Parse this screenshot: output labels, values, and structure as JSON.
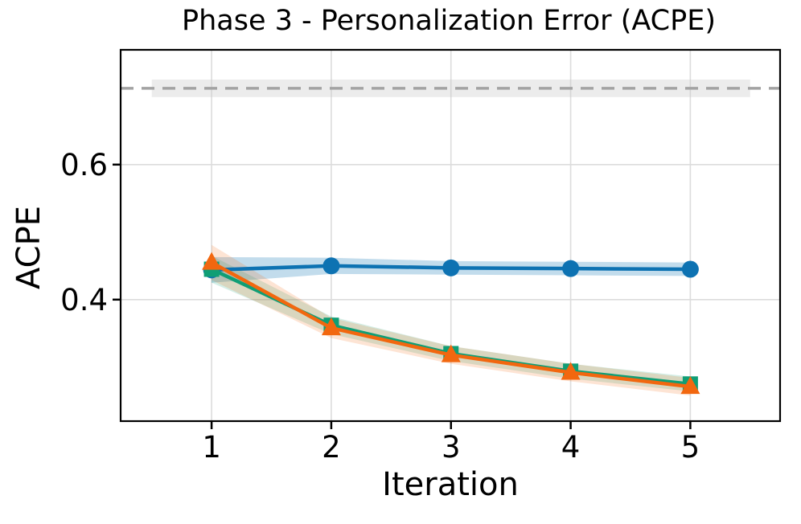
{
  "chart_data": {
    "type": "line",
    "title": "Phase 3 - Personalization Error (ACPE)",
    "xlabel": "Iteration",
    "ylabel": "ACPE",
    "x": [
      1,
      2,
      3,
      4,
      5
    ],
    "xticks": [
      1,
      2,
      3,
      4,
      5
    ],
    "xticklabels": [
      "1",
      "2",
      "3",
      "4",
      "5"
    ],
    "yticks": [
      0.4,
      0.6
    ],
    "yticklabels": [
      "0.4",
      "0.6"
    ],
    "xlim": [
      0.24,
      5.75
    ],
    "ylim": [
      0.22,
      0.77
    ],
    "grid": true,
    "legend": "none",
    "background_color": "#ffffff",
    "grid_color": "#dcdcdc",
    "spine_color": "#000000",
    "baseline": {
      "value": 0.713,
      "band_low": 0.7,
      "band_high": 0.726,
      "band_x_start": 0.5,
      "band_x_end": 5.5,
      "line_color": "#a3a3a3",
      "band_color": "#c9c9c9",
      "style": "dashed"
    },
    "series": [
      {
        "name": "series_blue",
        "marker": "circle",
        "color": "#0d72b2",
        "band_opacity": 0.25,
        "values": [
          0.444,
          0.45,
          0.447,
          0.446,
          0.445
        ],
        "band_halfwidth": [
          0.019,
          0.012,
          0.01,
          0.01,
          0.01
        ]
      },
      {
        "name": "series_green",
        "marker": "square",
        "color": "#0f9e75",
        "band_opacity": 0.18,
        "values": [
          0.445,
          0.362,
          0.32,
          0.294,
          0.275
        ],
        "band_halfwidth": [
          0.02,
          0.013,
          0.011,
          0.011,
          0.011
        ]
      },
      {
        "name": "series_orange",
        "marker": "triangle",
        "color": "#f2670f",
        "band_opacity": 0.18,
        "values": [
          0.455,
          0.358,
          0.318,
          0.292,
          0.271
        ],
        "band_halfwidth": [
          0.026,
          0.015,
          0.013,
          0.013,
          0.013
        ]
      }
    ]
  }
}
